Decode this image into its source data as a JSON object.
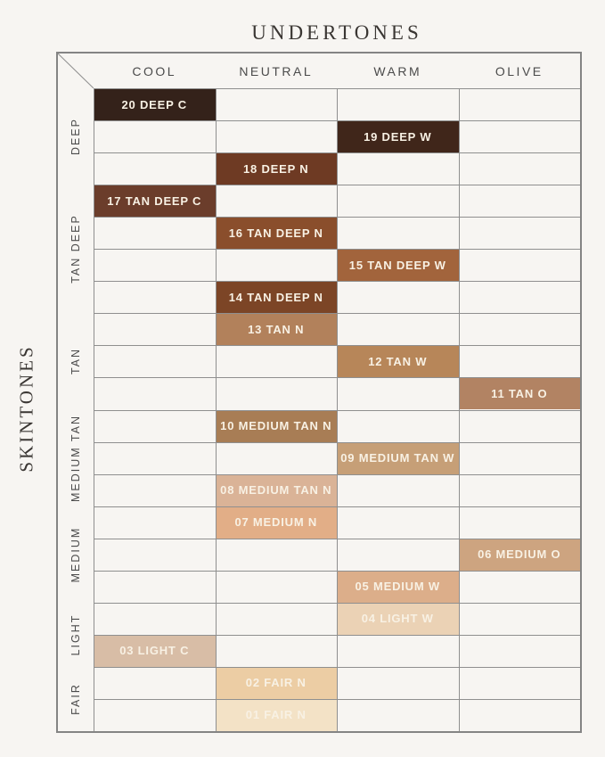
{
  "title": "UNDERTONES",
  "y_axis_label": "SKINTONES",
  "colors": {
    "background": "#f7f5f2",
    "grid_line": "#8f8f8f",
    "outer_border": "#848484",
    "header_text": "#4b4b4b",
    "title_text": "#3a3633",
    "swatch_text": "#f8f1e4"
  },
  "chart_data": {
    "type": "table",
    "title": "UNDERTONES",
    "xlabel": "UNDERTONES",
    "ylabel": "SKINTONES",
    "columns": [
      "COOL",
      "NEUTRAL",
      "WARM",
      "OLIVE"
    ],
    "row_groups": [
      {
        "label": "DEEP",
        "rows": 3
      },
      {
        "label": "TAN DEEP",
        "rows": 4
      },
      {
        "label": "TAN",
        "rows": 3
      },
      {
        "label": "MEDIUM TAN",
        "rows": 3
      },
      {
        "label": "MEDIUM",
        "rows": 3
      },
      {
        "label": "LIGHT",
        "rows": 2
      },
      {
        "label": "FAIR",
        "rows": 2
      }
    ],
    "num_rows": 20,
    "cells": [
      {
        "label": "20 DEEP C",
        "row": 1,
        "undertone": "COOL",
        "skintone": "DEEP",
        "color": "#34221a"
      },
      {
        "label": "19 DEEP W",
        "row": 2,
        "undertone": "WARM",
        "skintone": "DEEP",
        "color": "#40261a"
      },
      {
        "label": "18 DEEP N",
        "row": 3,
        "undertone": "NEUTRAL",
        "skintone": "DEEP",
        "color": "#6e3a23"
      },
      {
        "label": "17 TAN DEEP C",
        "row": 4,
        "undertone": "COOL",
        "skintone": "TAN DEEP",
        "color": "#6b3d2b"
      },
      {
        "label": "16 TAN DEEP N",
        "row": 5,
        "undertone": "NEUTRAL",
        "skintone": "TAN DEEP",
        "color": "#8a4e2c"
      },
      {
        "label": "15 TAN DEEP W",
        "row": 6,
        "undertone": "WARM",
        "skintone": "TAN DEEP",
        "color": "#a2643c"
      },
      {
        "label": "14 TAN DEEP N",
        "row": 7,
        "undertone": "NEUTRAL",
        "skintone": "TAN DEEP",
        "color": "#7c4526"
      },
      {
        "label": "13 TAN N",
        "row": 8,
        "undertone": "NEUTRAL",
        "skintone": "TAN",
        "color": "#b2815b"
      },
      {
        "label": "12 TAN W",
        "row": 9,
        "undertone": "WARM",
        "skintone": "TAN",
        "color": "#b78659"
      },
      {
        "label": "11 TAN O",
        "row": 10,
        "undertone": "OLIVE",
        "skintone": "TAN",
        "color": "#b28363"
      },
      {
        "label": "10 MEDIUM TAN N",
        "row": 11,
        "undertone": "NEUTRAL",
        "skintone": "MEDIUM TAN",
        "color": "#a87d55"
      },
      {
        "label": "09 MEDIUM TAN W",
        "row": 12,
        "undertone": "WARM",
        "skintone": "MEDIUM TAN",
        "color": "#c69f77"
      },
      {
        "label": "08 MEDIUM TAN N",
        "row": 13,
        "undertone": "NEUTRAL",
        "skintone": "MEDIUM TAN",
        "color": "#dab397"
      },
      {
        "label": "07 MEDIUM N",
        "row": 14,
        "undertone": "NEUTRAL",
        "skintone": "MEDIUM",
        "color": "#e2ae87"
      },
      {
        "label": "06 MEDIUM O",
        "row": 15,
        "undertone": "OLIVE",
        "skintone": "MEDIUM",
        "color": "#cda480"
      },
      {
        "label": "05 MEDIUM W",
        "row": 16,
        "undertone": "WARM",
        "skintone": "MEDIUM",
        "color": "#dcae8a"
      },
      {
        "label": "04 LIGHT W",
        "row": 17,
        "undertone": "WARM",
        "skintone": "LIGHT",
        "color": "#ebd2b5"
      },
      {
        "label": "03 LIGHT C",
        "row": 18,
        "undertone": "COOL",
        "skintone": "LIGHT",
        "color": "#d8bda6"
      },
      {
        "label": "02 FAIR N",
        "row": 19,
        "undertone": "NEUTRAL",
        "skintone": "FAIR",
        "color": "#eccda4"
      },
      {
        "label": "01 FAIR N",
        "row": 20,
        "undertone": "NEUTRAL",
        "skintone": "FAIR",
        "color": "#f3e2c6"
      }
    ]
  }
}
